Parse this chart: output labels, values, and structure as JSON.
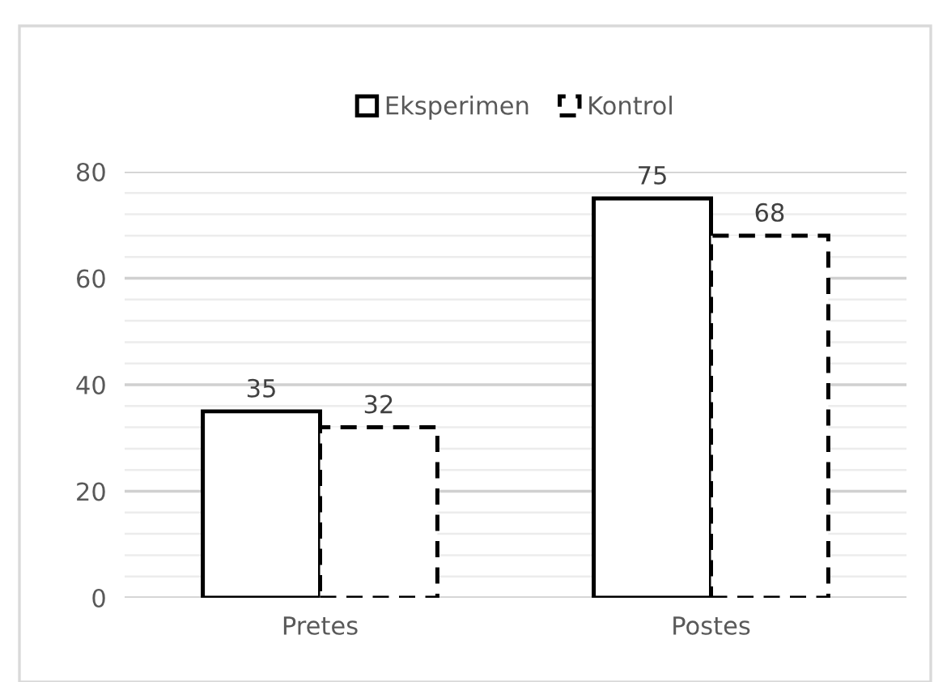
{
  "chart_data": {
    "type": "bar",
    "categories": [
      "Pretes",
      "Postes"
    ],
    "series": [
      {
        "name": "Eksperimen",
        "color": "#000000",
        "line_style": "solid",
        "values": [
          35,
          75
        ]
      },
      {
        "name": "Kontrol",
        "color": "#000000",
        "line_style": "dashed",
        "values": [
          32,
          68
        ]
      }
    ],
    "ylim": [
      0,
      80
    ],
    "yticks": [
      0,
      20,
      40,
      60,
      80
    ],
    "grid": "y",
    "legend": "top",
    "data_labels": true
  }
}
